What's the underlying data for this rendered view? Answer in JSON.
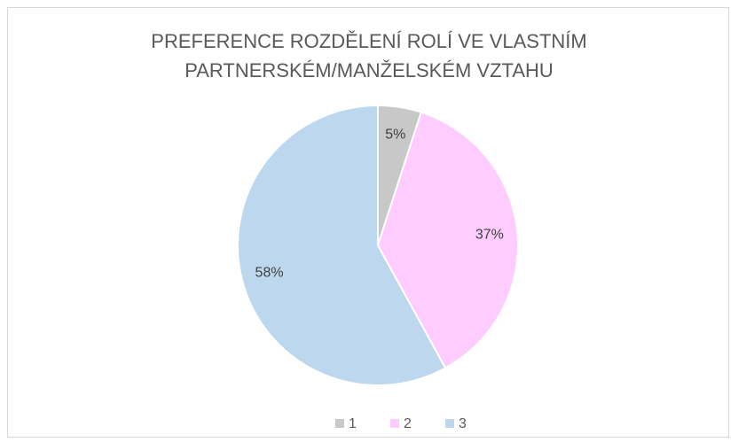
{
  "chart_data": {
    "type": "pie",
    "title": "PREFERENCE ROZDĚLENÍ ROLÍ VE VLASTNÍM PARTNERSKÉM/MANŽELSKÉM VZTAHU",
    "categories": [
      "1",
      "2",
      "3"
    ],
    "values": [
      5,
      37,
      58
    ],
    "value_labels": [
      "5%",
      "37%",
      "58%"
    ],
    "colors": [
      "#c8c8c8",
      "#ffccff",
      "#bdd7ee"
    ],
    "legend": "bottom"
  }
}
